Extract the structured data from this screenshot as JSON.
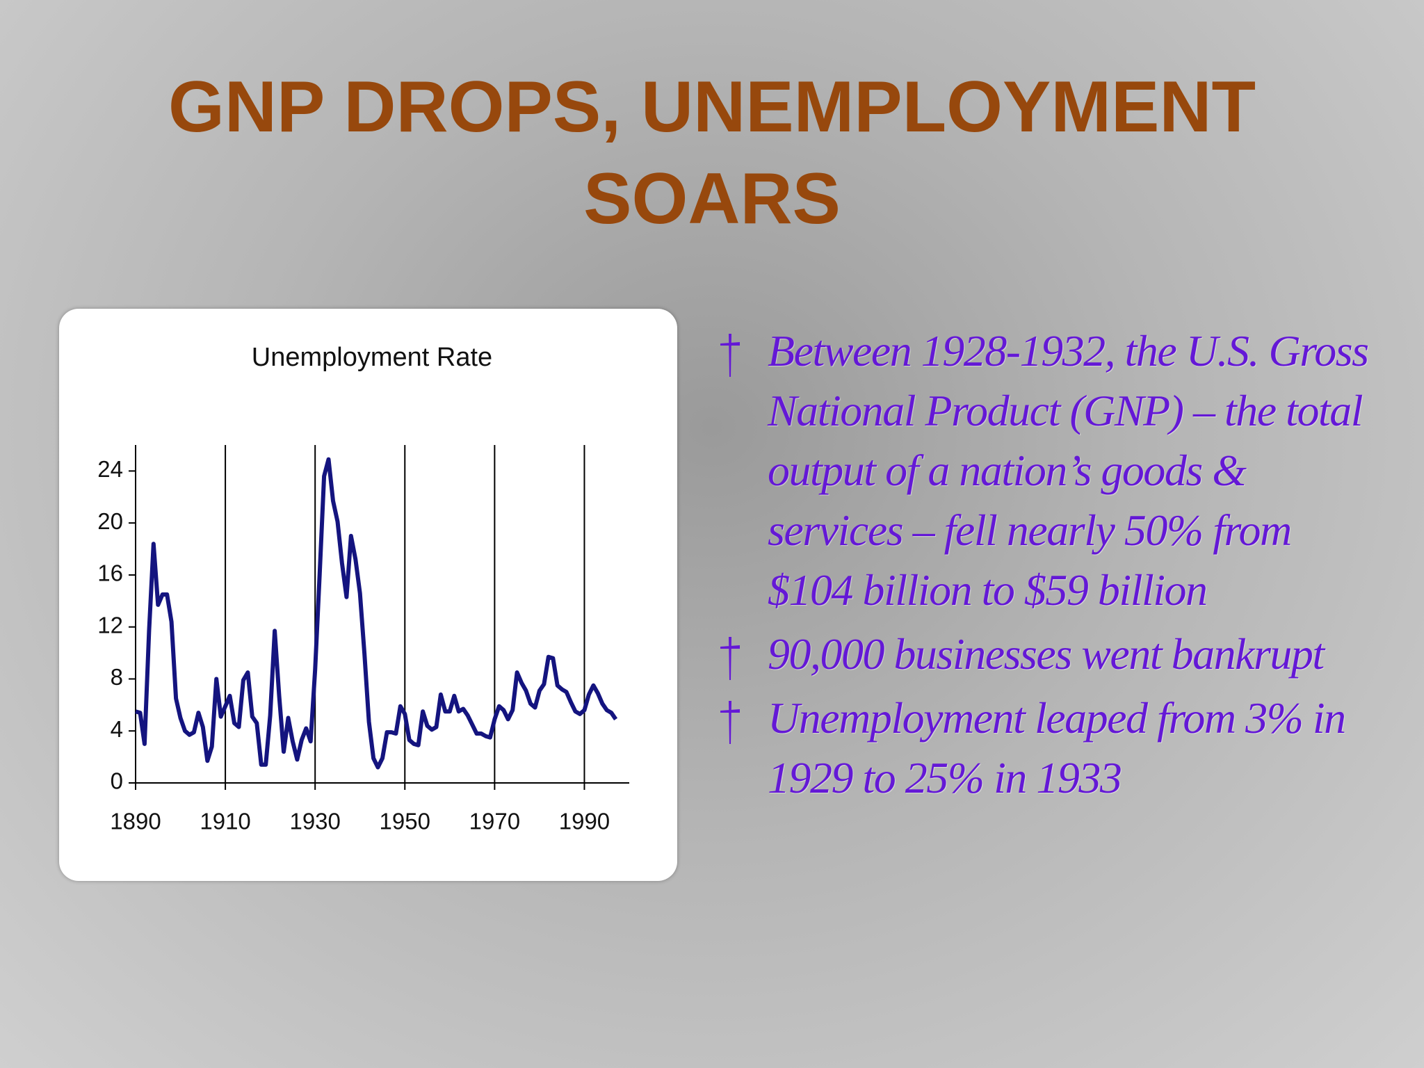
{
  "slide": {
    "title": "GNP DROPS, UNEMPLOYMENT SOARS",
    "bullets": [
      "Between 1928-1932, the U.S. Gross National Product (GNP) – the total output of a nation’s goods & services – fell nearly 50% from $104 billion to $59 billion",
      "90,000 businesses went bankrupt",
      "Unemployment leaped from 3% in 1929 to 25% in 1933"
    ]
  },
  "chart_data": {
    "type": "line",
    "title": "Unemployment Rate",
    "color": "#14147f",
    "x": [
      1890,
      1891,
      1892,
      1893,
      1894,
      1895,
      1896,
      1897,
      1898,
      1899,
      1900,
      1901,
      1902,
      1903,
      1904,
      1905,
      1906,
      1907,
      1908,
      1909,
      1910,
      1911,
      1912,
      1913,
      1914,
      1915,
      1916,
      1917,
      1918,
      1919,
      1920,
      1921,
      1922,
      1923,
      1924,
      1925,
      1926,
      1927,
      1928,
      1929,
      1930,
      1931,
      1932,
      1933,
      1934,
      1935,
      1936,
      1937,
      1938,
      1939,
      1940,
      1941,
      1942,
      1943,
      1944,
      1945,
      1946,
      1947,
      1948,
      1949,
      1950,
      1951,
      1952,
      1953,
      1954,
      1955,
      1956,
      1957,
      1958,
      1959,
      1960,
      1961,
      1962,
      1963,
      1964,
      1965,
      1966,
      1967,
      1968,
      1969,
      1970,
      1971,
      1972,
      1973,
      1974,
      1975,
      1976,
      1977,
      1978,
      1979,
      1980,
      1981,
      1982,
      1983,
      1984,
      1985,
      1986,
      1987,
      1988,
      1989,
      1990,
      1991,
      1992,
      1993,
      1994,
      1995,
      1996,
      1997
    ],
    "values": [
      5.5,
      5.4,
      3.0,
      11.7,
      18.4,
      13.7,
      14.5,
      14.5,
      12.4,
      6.5,
      5.0,
      4.0,
      3.7,
      3.9,
      5.4,
      4.3,
      1.7,
      2.8,
      8.0,
      5.1,
      5.9,
      6.7,
      4.6,
      4.3,
      7.9,
      8.5,
      5.1,
      4.6,
      1.4,
      1.4,
      5.2,
      11.7,
      6.7,
      2.4,
      5.0,
      3.2,
      1.8,
      3.3,
      4.2,
      3.2,
      8.7,
      15.9,
      23.6,
      24.9,
      21.7,
      20.1,
      16.9,
      14.3,
      19.0,
      17.2,
      14.6,
      9.9,
      4.7,
      1.9,
      1.2,
      1.9,
      3.9,
      3.9,
      3.8,
      5.9,
      5.3,
      3.3,
      3.0,
      2.9,
      5.5,
      4.4,
      4.1,
      4.3,
      6.8,
      5.5,
      5.5,
      6.7,
      5.5,
      5.7,
      5.2,
      4.5,
      3.8,
      3.8,
      3.6,
      3.5,
      4.9,
      5.9,
      5.6,
      4.9,
      5.6,
      8.5,
      7.7,
      7.1,
      6.1,
      5.8,
      7.1,
      7.6,
      9.7,
      9.6,
      7.5,
      7.2,
      7.0,
      6.2,
      5.5,
      5.3,
      5.6,
      6.8,
      7.5,
      6.9,
      6.1,
      5.6,
      5.4,
      4.9
    ],
    "xlim": [
      1890,
      2000
    ],
    "ylim": [
      0,
      26
    ],
    "xticks": [
      1890,
      1910,
      1930,
      1950,
      1970,
      1990
    ],
    "yticks": [
      0,
      4,
      8,
      12,
      16,
      20,
      24
    ],
    "grid": "x"
  }
}
